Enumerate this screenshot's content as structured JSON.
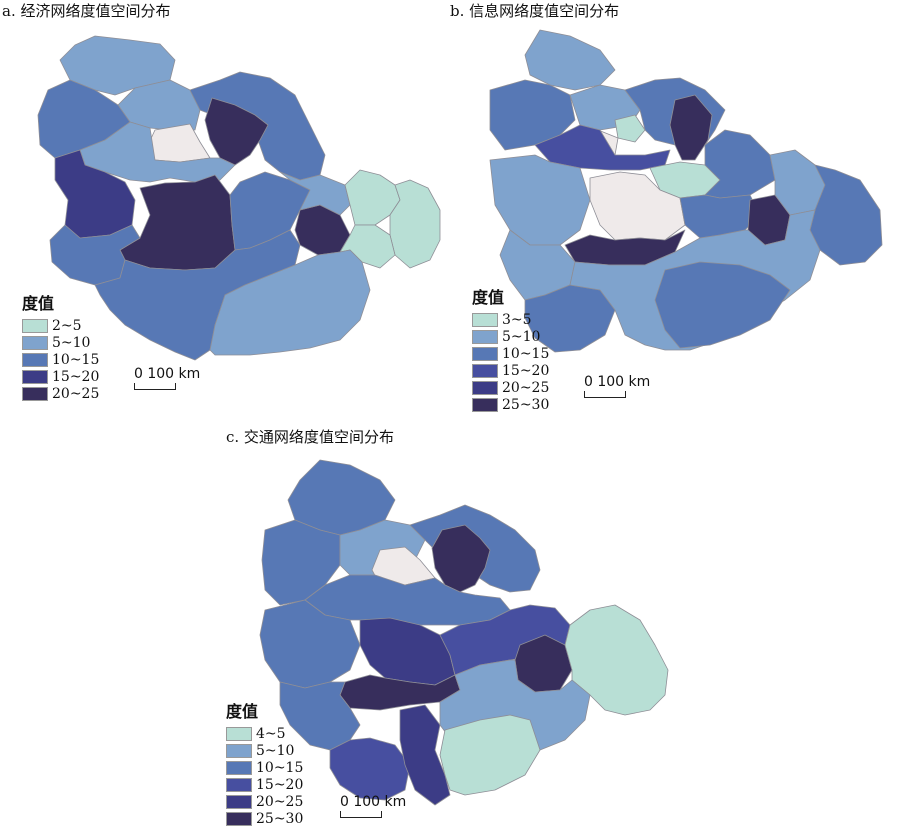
{
  "palette": {
    "c1": "#b8dfd5",
    "c2": "#7fa3cd",
    "c3": "#5778b5",
    "c4": "#474fa0",
    "c5": "#3c3c86",
    "c6": "#372e5c",
    "nodata": "#efeaea"
  },
  "maps": [
    {
      "id": "a",
      "title": "a. 经济网络度值空间分布",
      "legend_title": "度值",
      "legend": [
        {
          "label": "2~5",
          "color": "#b8dfd5"
        },
        {
          "label": "5~10",
          "color": "#7fa3cd"
        },
        {
          "label": "10~15",
          "color": "#5778b5"
        },
        {
          "label": "15~20",
          "color": "#3c3c86"
        },
        {
          "label": "20~25",
          "color": "#372e5c"
        }
      ],
      "scale_label": "0 100 km"
    },
    {
      "id": "b",
      "title": "b. 信息网络度值空间分布",
      "legend_title": "度值",
      "legend": [
        {
          "label": "3~5",
          "color": "#b8dfd5"
        },
        {
          "label": "5~10",
          "color": "#7fa3cd"
        },
        {
          "label": "10~15",
          "color": "#5778b5"
        },
        {
          "label": "15~20",
          "color": "#474fa0"
        },
        {
          "label": "20~25",
          "color": "#3c3c86"
        },
        {
          "label": "25~30",
          "color": "#372e5c"
        }
      ],
      "scale_label": "0 100 km"
    },
    {
      "id": "c",
      "title": "c. 交通网络度值空间分布",
      "legend_title": "度值",
      "legend": [
        {
          "label": "4~5",
          "color": "#b8dfd5"
        },
        {
          "label": "5~10",
          "color": "#7fa3cd"
        },
        {
          "label": "10~15",
          "color": "#5778b5"
        },
        {
          "label": "15~20",
          "color": "#474fa0"
        },
        {
          "label": "20~25",
          "color": "#3c3c86"
        },
        {
          "label": "25~30",
          "color": "#372e5c"
        }
      ],
      "scale_label": "0 100 km"
    }
  ]
}
